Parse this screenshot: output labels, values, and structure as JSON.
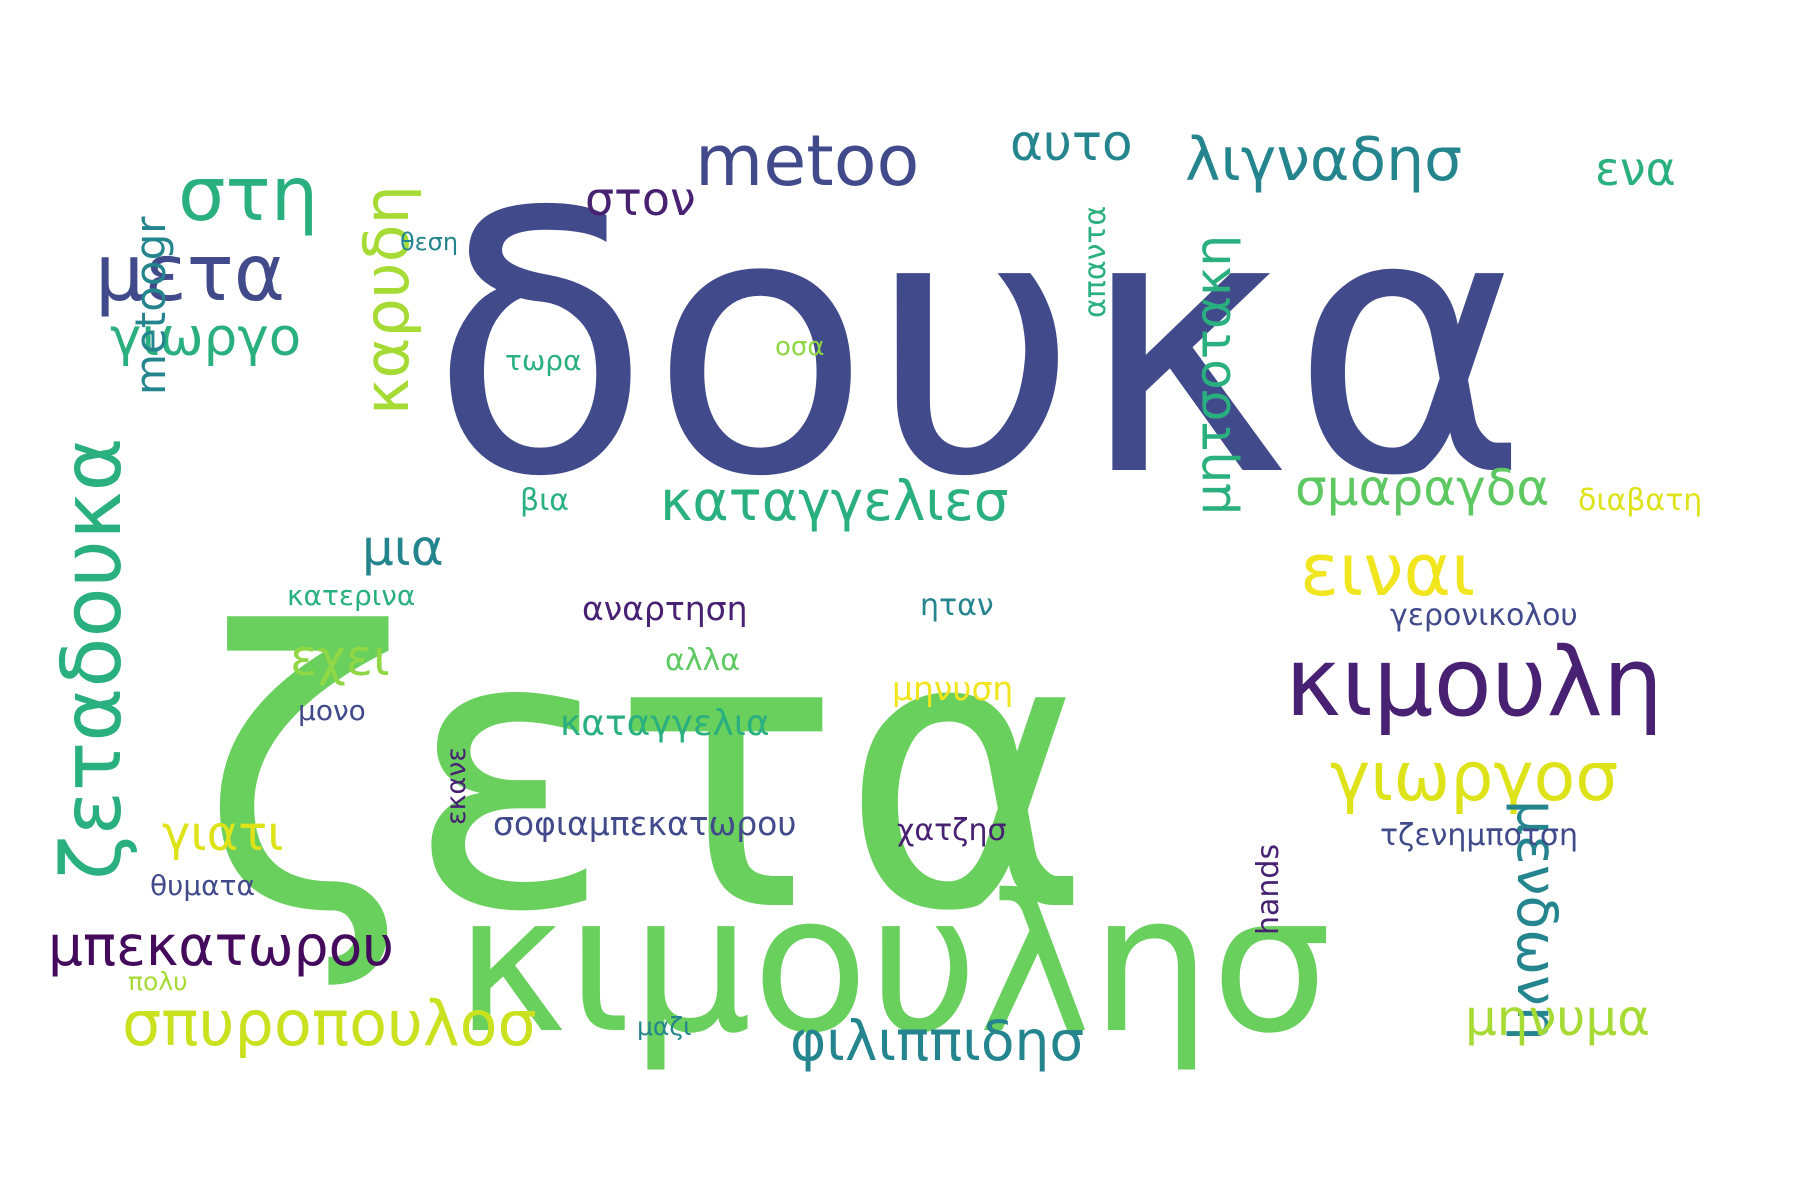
{
  "words": [
    {
      "text": "δουκα",
      "color": "#414a8a"
    },
    {
      "text": "ζετα",
      "color": "#69cf5d"
    },
    {
      "text": "κιμουλησ",
      "color": "#69cf5d"
    },
    {
      "text": "ζεταδουκα",
      "color": "#2ab07f"
    },
    {
      "text": "κιμουλη",
      "color": "#482172"
    },
    {
      "text": "metoo",
      "color": "#414a8a"
    },
    {
      "text": "στη",
      "color": "#2ab07f"
    },
    {
      "text": "μετα",
      "color": "#414a8a"
    },
    {
      "text": "ειναι",
      "color": "#f1e51d"
    },
    {
      "text": "λιγναδησ",
      "color": "#25858e"
    },
    {
      "text": "καρυδη",
      "color": "#a6db35"
    },
    {
      "text": "γιωργοσ",
      "color": "#dde318"
    },
    {
      "text": "σπυροπουλοσ",
      "color": "#cae11f"
    },
    {
      "text": "μπεκατωρου",
      "color": "#440a5c"
    },
    {
      "text": "φιλιππιδησ",
      "color": "#25858e"
    },
    {
      "text": "καταγγελιεσ",
      "color": "#2ab07f"
    },
    {
      "text": "γιωργο",
      "color": "#2ab07f"
    },
    {
      "text": "μητσοτακη",
      "color": "#2ab07f"
    },
    {
      "text": "μενδωνη",
      "color": "#25858e"
    },
    {
      "text": "αυτο",
      "color": "#25858e"
    },
    {
      "text": "σμαραγδα",
      "color": "#5ec962"
    },
    {
      "text": "μηνυμα",
      "color": "#a6db35"
    },
    {
      "text": "μια",
      "color": "#25858e"
    },
    {
      "text": "εχει",
      "color": "#8fd744"
    },
    {
      "text": "γιατι",
      "color": "#dde318"
    },
    {
      "text": "metoogr",
      "color": "#25858e"
    },
    {
      "text": "ενα",
      "color": "#2ab07f"
    },
    {
      "text": "στον",
      "color": "#482172"
    },
    {
      "text": "καταγγελια",
      "color": "#2ab07f"
    },
    {
      "text": "σοφιαμπεκατωρου",
      "color": "#414a8a"
    },
    {
      "text": "αναρτηση",
      "color": "#482172"
    },
    {
      "text": "γερονικολου",
      "color": "#414a8a"
    },
    {
      "text": "τζενημποτση",
      "color": "#414a8a"
    },
    {
      "text": "μηνυση",
      "color": "#f1e51d"
    },
    {
      "text": "χατζησ",
      "color": "#482172"
    },
    {
      "text": "διαβατη",
      "color": "#dde318"
    },
    {
      "text": "απαντα",
      "color": "#2ab07f"
    },
    {
      "text": "hands",
      "color": "#482172"
    },
    {
      "text": "κατερινα",
      "color": "#2ab07f"
    },
    {
      "text": "ηταν",
      "color": "#25858e"
    },
    {
      "text": "αλλα",
      "color": "#5ec962"
    },
    {
      "text": "μονο",
      "color": "#414a8a"
    },
    {
      "text": "εκανε",
      "color": "#482172"
    },
    {
      "text": "θυματα",
      "color": "#414a8a"
    },
    {
      "text": "τωρα",
      "color": "#2ab07f"
    },
    {
      "text": "οσα",
      "color": "#8fd744"
    },
    {
      "text": "βια",
      "color": "#2ab07f"
    },
    {
      "text": "θεση",
      "color": "#25858e"
    },
    {
      "text": "πολυ",
      "color": "#a6db35"
    },
    {
      "text": "μαζι",
      "color": "#25858e"
    }
  ]
}
